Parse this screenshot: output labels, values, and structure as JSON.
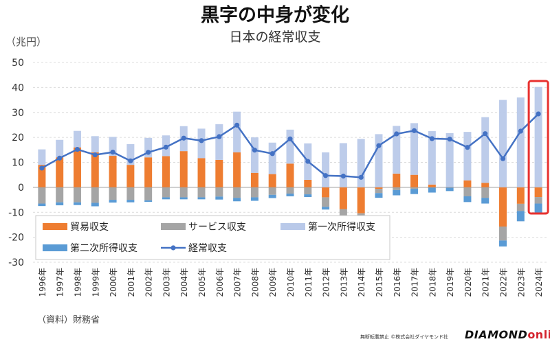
{
  "title": "黒字の中身が変化",
  "subtitle": "日本の経常収支",
  "unit_label": "（兆円）",
  "source": "（資料）財務省",
  "footer_note": "無断転載禁止 ©株式会社ダイヤモンド社",
  "brand": {
    "part1": "DIAMOND",
    "part2": "online"
  },
  "colors": {
    "trade": "#ee7d31",
    "services": "#a5a5a5",
    "primary_income": "#b9c9e9",
    "secondary_income": "#5a9bd5",
    "current_account": "#4472c4",
    "highlight": "#e8312f"
  },
  "chart_data": {
    "type": "bar",
    "stacked": true,
    "x": [
      "1996年",
      "1997年",
      "1998年",
      "1999年",
      "2000年",
      "2001年",
      "2002年",
      "2003年",
      "2004年",
      "2005年",
      "2006年",
      "2007年",
      "2008年",
      "2009年",
      "2010年",
      "2011年",
      "2012年",
      "2013年",
      "2014年",
      "2015年",
      "2016年",
      "2017年",
      "2018年",
      "2019年",
      "2020年",
      "2021年",
      "2022年",
      "2023年",
      "2024年"
    ],
    "ylim": [
      -30,
      50
    ],
    "yticks": [
      -30,
      -20,
      -10,
      0,
      10,
      20,
      30,
      40,
      50
    ],
    "grid": true,
    "legend_position": "bottom-left",
    "highlight_category": "2024年",
    "series": [
      {
        "name": "貿易収支",
        "kind": "bar",
        "values": [
          9.0,
          12.0,
          16.0,
          14.0,
          12.6,
          9.0,
          12.0,
          12.5,
          14.5,
          11.7,
          11.0,
          14.0,
          5.8,
          5.3,
          9.5,
          3.0,
          -4.0,
          -8.7,
          -10.4,
          -0.6,
          5.5,
          5.0,
          1.1,
          -0.1,
          2.8,
          1.8,
          -15.7,
          -6.6,
          -3.9
        ]
      },
      {
        "name": "サービス収支",
        "kind": "bar",
        "values": [
          -6.5,
          -6.0,
          -6.0,
          -6.2,
          -5.0,
          -5.0,
          -5.2,
          -4.0,
          -4.0,
          -4.0,
          -3.7,
          -4.2,
          -4.0,
          -3.0,
          -2.5,
          -2.8,
          -3.8,
          -3.4,
          -3.1,
          -1.7,
          -1.1,
          -0.6,
          -0.1,
          0.1,
          -3.6,
          -4.2,
          -5.6,
          -2.9,
          -2.6
        ]
      },
      {
        "name": "第一次所得収支",
        "kind": "bar",
        "values": [
          6.2,
          7.0,
          6.6,
          6.5,
          7.6,
          8.3,
          7.8,
          8.3,
          10.0,
          11.8,
          14.3,
          16.3,
          14.2,
          12.6,
          13.6,
          14.6,
          14.0,
          17.7,
          19.4,
          21.3,
          19.1,
          20.7,
          21.4,
          21.6,
          19.4,
          26.3,
          35.0,
          36.0,
          40.2
        ]
      },
      {
        "name": "第二次所得収支",
        "kind": "bar",
        "values": [
          -1.0,
          -1.2,
          -1.1,
          -1.4,
          -1.1,
          -1.0,
          -0.6,
          -0.8,
          -0.8,
          -0.8,
          -1.2,
          -1.4,
          -1.4,
          -1.3,
          -1.1,
          -1.1,
          -1.1,
          -1.0,
          -1.9,
          -1.9,
          -2.1,
          -2.1,
          -2.0,
          -1.4,
          -2.3,
          -2.3,
          -2.4,
          -4.1,
          -4.2
        ]
      },
      {
        "name": "経常収支",
        "kind": "line",
        "values": [
          7.7,
          11.7,
          15.2,
          13.0,
          14.1,
          10.6,
          14.0,
          16.1,
          19.7,
          18.7,
          20.3,
          24.9,
          14.9,
          13.5,
          19.4,
          10.4,
          4.7,
          4.5,
          4.0,
          16.7,
          21.4,
          22.7,
          19.5,
          19.3,
          16.0,
          21.5,
          11.5,
          22.5,
          29.4
        ]
      }
    ]
  }
}
